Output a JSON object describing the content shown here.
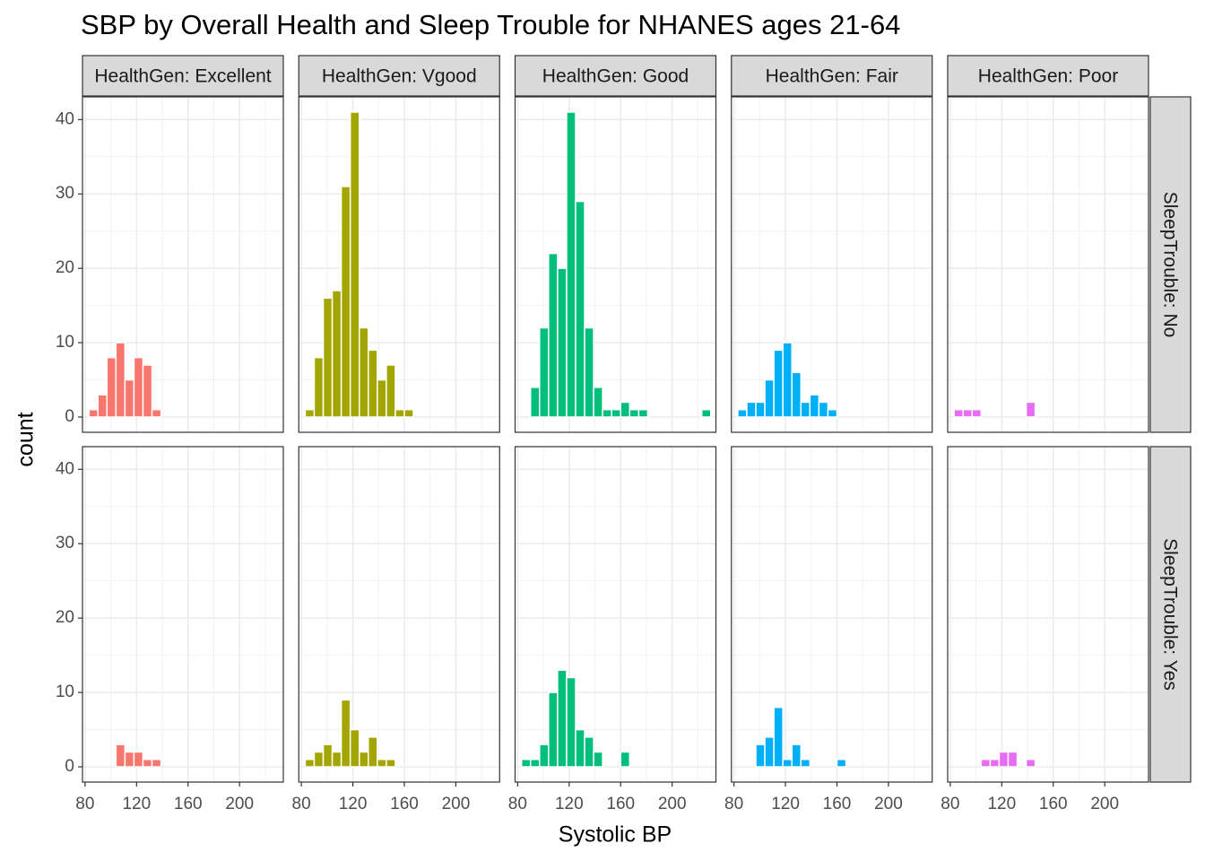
{
  "chart_data": {
    "type": "histogram",
    "title": "SBP by Overall Health and Sleep Trouble for NHANES ages 21-64",
    "xlabel": "Systolic BP",
    "ylabel": "count",
    "bins": [
      83,
      90,
      97,
      104,
      111,
      118,
      125,
      132,
      139,
      146,
      153,
      160,
      167,
      174,
      181,
      188,
      195,
      202,
      209,
      216,
      223,
      230
    ],
    "xlim": [
      78,
      234
    ],
    "xticks": [
      80,
      120,
      160,
      200
    ],
    "ylim": [
      -2.05,
      43.05
    ],
    "yticks": [
      0,
      10,
      20,
      30,
      40
    ],
    "grid": true,
    "columns": [
      {
        "label": "HealthGen: Excellent",
        "color": "#F8766D"
      },
      {
        "label": "HealthGen: Vgood",
        "color": "#A3A500"
      },
      {
        "label": "HealthGen: Good",
        "color": "#00BF7D"
      },
      {
        "label": "HealthGen: Fair",
        "color": "#00B0F6"
      },
      {
        "label": "HealthGen: Poor",
        "color": "#E76BF3"
      }
    ],
    "rows": [
      {
        "label": "SleepTrouble: No",
        "counts": [
          [
            1,
            3,
            8,
            10,
            5,
            8,
            7,
            1,
            0,
            0,
            0,
            0,
            0,
            0,
            0,
            0,
            0,
            0,
            0,
            0,
            0
          ],
          [
            1,
            8,
            16,
            17,
            31,
            41,
            12,
            9,
            5,
            7,
            1,
            1,
            0,
            0,
            0,
            0,
            0,
            0,
            0,
            0,
            0
          ],
          [
            0,
            4,
            12,
            22,
            20,
            41,
            29,
            12,
            4,
            1,
            1,
            2,
            1,
            1,
            0,
            0,
            0,
            0,
            0,
            0,
            1
          ],
          [
            1,
            2,
            2,
            5,
            9,
            10,
            6,
            2,
            3,
            2,
            1,
            0,
            0,
            0,
            0,
            0,
            0,
            0,
            0,
            0,
            0
          ],
          [
            1,
            1,
            1,
            0,
            0,
            0,
            0,
            0,
            2,
            0,
            0,
            0,
            0,
            0,
            0,
            0,
            0,
            0,
            0,
            0,
            0
          ]
        ]
      },
      {
        "label": "SleepTrouble: Yes",
        "counts": [
          [
            0,
            0,
            0,
            3,
            2,
            2,
            1,
            1,
            0,
            0,
            0,
            0,
            0,
            0,
            0,
            0,
            0,
            0,
            0,
            0,
            0
          ],
          [
            1,
            2,
            3,
            2,
            9,
            5,
            2,
            4,
            1,
            1,
            0,
            0,
            0,
            0,
            0,
            0,
            0,
            0,
            0,
            0,
            0
          ],
          [
            1,
            1,
            3,
            10,
            13,
            12,
            5,
            4,
            2,
            0,
            0,
            2,
            0,
            0,
            0,
            0,
            0,
            0,
            0,
            0,
            0
          ],
          [
            0,
            0,
            3,
            4,
            8,
            1,
            3,
            1,
            0,
            0,
            0,
            1,
            0,
            0,
            0,
            0,
            0,
            0,
            0,
            0,
            0
          ],
          [
            0,
            0,
            0,
            1,
            1,
            2,
            2,
            0,
            1,
            0,
            0,
            0,
            0,
            0,
            0,
            0,
            0,
            0,
            0,
            0,
            0
          ]
        ]
      }
    ]
  }
}
